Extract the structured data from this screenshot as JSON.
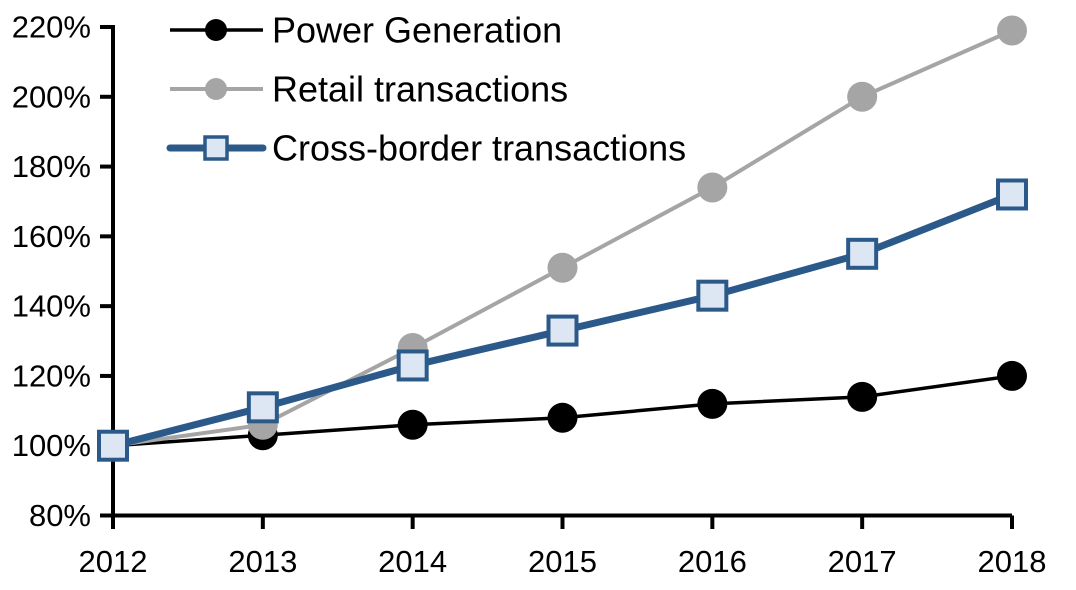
{
  "chart_data": {
    "type": "line",
    "title": "",
    "x": [
      2012,
      2013,
      2014,
      2015,
      2016,
      2017,
      2018
    ],
    "x_tick_labels": [
      "2012",
      "2013",
      "2014",
      "2015",
      "2016",
      "2017",
      "2018"
    ],
    "y_tick_labels": [
      "80%",
      "100%",
      "120%",
      "140%",
      "160%",
      "180%",
      "200%",
      "220%"
    ],
    "ylim": [
      80,
      220
    ],
    "y_tick_step": 20,
    "grid": false,
    "legend_position": "top-left",
    "axis_color": "#000000",
    "background": "#FFFFFF",
    "series": [
      {
        "name": "Power Generation",
        "values": [
          100,
          103,
          106,
          108,
          112,
          114,
          120
        ],
        "color": "#000000",
        "marker": "circle",
        "marker_fill": "#000000",
        "marker_stroke": "#000000",
        "line_width": 3.5
      },
      {
        "name": "Retail transactions",
        "values": [
          100,
          106,
          128,
          151,
          174,
          200,
          219
        ],
        "color": "#A5A5A5",
        "marker": "circle",
        "marker_fill": "#A5A5A5",
        "marker_stroke": "#A5A5A5",
        "line_width": 4
      },
      {
        "name": "Cross-border transactions",
        "values": [
          100,
          111,
          123,
          133,
          143,
          155,
          172
        ],
        "color": "#2B5A8A",
        "marker": "square",
        "marker_fill": "#DCE7F3",
        "marker_stroke": "#2B5A8A",
        "line_width": 7
      }
    ]
  }
}
